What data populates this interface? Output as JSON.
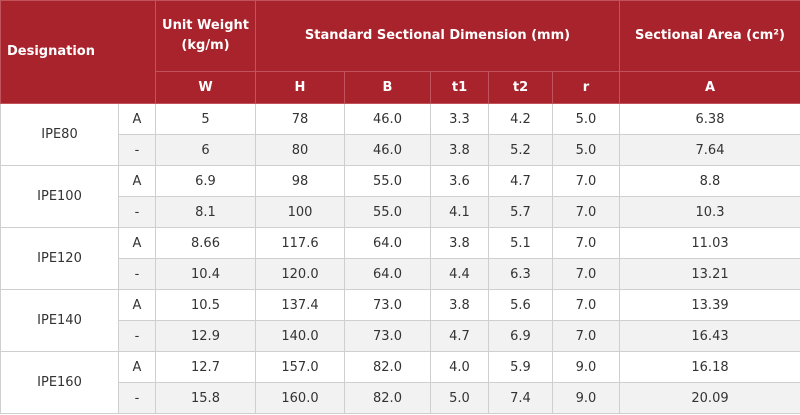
{
  "header": {
    "designation": "Designation",
    "unit_weight": "Unit Weight (kg/m)",
    "standard_dimension": "Standard Sectional Dimension (mm)",
    "sectional_area": "Sectional Area (cm²)",
    "sub": [
      "W",
      "H",
      "B",
      "t1",
      "t2",
      "r",
      "A"
    ]
  },
  "rows": [
    {
      "name": "IPE80",
      "variants": [
        {
          "v": "A",
          "W": "5",
          "H": "78",
          "B": "46.0",
          "t1": "3.3",
          "t2": "4.2",
          "r": "5.0",
          "A": "6.38"
        },
        {
          "v": "-",
          "W": "6",
          "H": "80",
          "B": "46.0",
          "t1": "3.8",
          "t2": "5.2",
          "r": "5.0",
          "A": "7.64"
        }
      ]
    },
    {
      "name": "IPE100",
      "variants": [
        {
          "v": "A",
          "W": "6.9",
          "H": "98",
          "B": "55.0",
          "t1": "3.6",
          "t2": "4.7",
          "r": "7.0",
          "A": "8.8"
        },
        {
          "v": "-",
          "W": "8.1",
          "H": "100",
          "B": "55.0",
          "t1": "4.1",
          "t2": "5.7",
          "r": "7.0",
          "A": "10.3"
        }
      ]
    },
    {
      "name": "IPE120",
      "variants": [
        {
          "v": "A",
          "W": "8.66",
          "H": "117.6",
          "B": "64.0",
          "t1": "3.8",
          "t2": "5.1",
          "r": "7.0",
          "A": "11.03"
        },
        {
          "v": "-",
          "W": "10.4",
          "H": "120.0",
          "B": "64.0",
          "t1": "4.4",
          "t2": "6.3",
          "r": "7.0",
          "A": "13.21"
        }
      ]
    },
    {
      "name": "IPE140",
      "variants": [
        {
          "v": "A",
          "W": "10.5",
          "H": "137.4",
          "B": "73.0",
          "t1": "3.8",
          "t2": "5.6",
          "r": "7.0",
          "A": "13.39"
        },
        {
          "v": "-",
          "W": "12.9",
          "H": "140.0",
          "B": "73.0",
          "t1": "4.7",
          "t2": "6.9",
          "r": "7.0",
          "A": "16.43"
        }
      ]
    },
    {
      "name": "IPE160",
      "variants": [
        {
          "v": "A",
          "W": "12.7",
          "H": "157.0",
          "B": "82.0",
          "t1": "4.0",
          "t2": "5.9",
          "r": "9.0",
          "A": "16.18"
        },
        {
          "v": "-",
          "W": "15.8",
          "H": "160.0",
          "B": "82.0",
          "t1": "5.0",
          "t2": "7.4",
          "r": "9.0",
          "A": "20.09"
        }
      ]
    }
  ],
  "colors": {
    "header_bg": "#a8232c",
    "header_text": "#ffffff",
    "alt_row": "#f2f2f2"
  }
}
